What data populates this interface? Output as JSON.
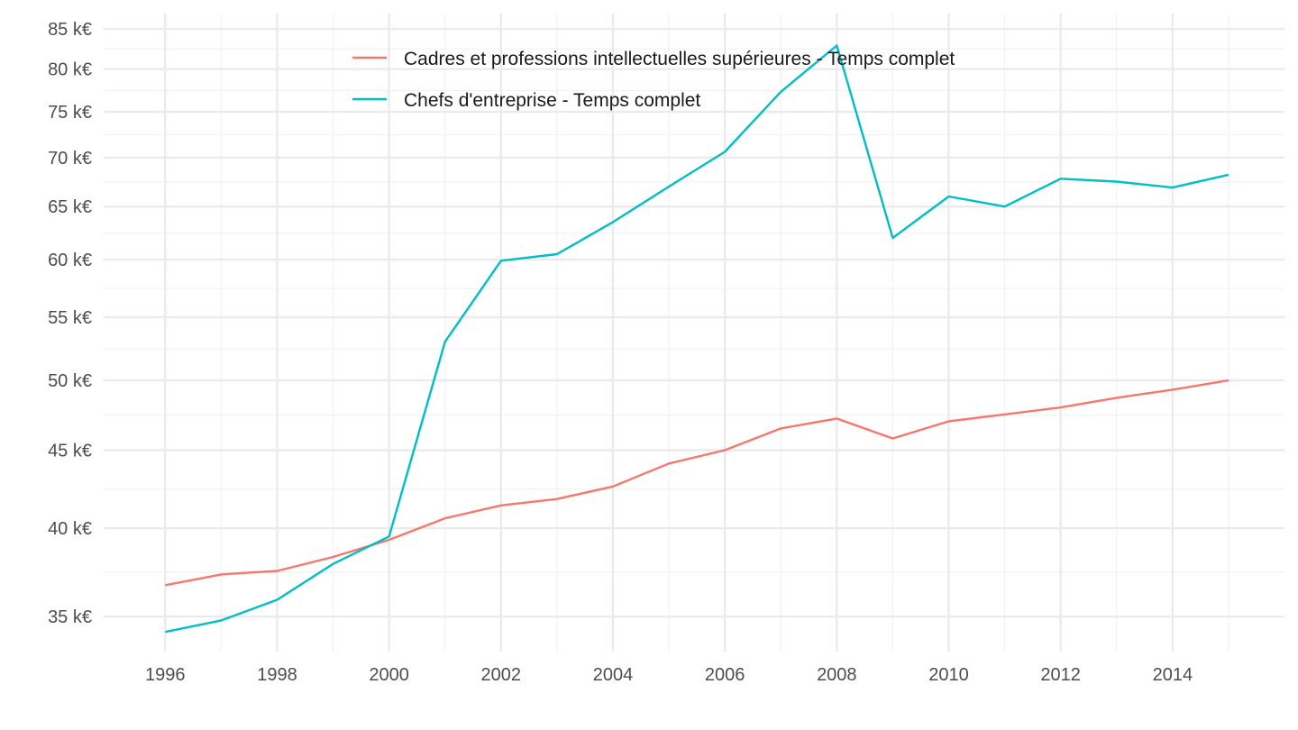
{
  "chart_data": {
    "type": "line",
    "title": "",
    "xlabel": "",
    "ylabel": "",
    "y_scale": "log",
    "x": [
      1996,
      1997,
      1998,
      1999,
      2000,
      2001,
      2002,
      2003,
      2004,
      2005,
      2006,
      2007,
      2008,
      2009,
      2010,
      2011,
      2012,
      2013,
      2014,
      2015
    ],
    "x_ticks": [
      1996,
      1998,
      2000,
      2002,
      2004,
      2006,
      2008,
      2010,
      2012,
      2014
    ],
    "x_tick_labels": [
      "1996",
      "1998",
      "2000",
      "2002",
      "2004",
      "2006",
      "2008",
      "2010",
      "2012",
      "2014"
    ],
    "y_ticks": [
      35000,
      40000,
      45000,
      50000,
      55000,
      60000,
      65000,
      70000,
      75000,
      80000,
      85000
    ],
    "y_tick_labels": [
      "35 k€",
      "40 k€",
      "45 k€",
      "50 k€",
      "55 k€",
      "60 k€",
      "65 k€",
      "70 k€",
      "75 k€",
      "80 k€",
      "85 k€"
    ],
    "ylim": [
      33200,
      87000
    ],
    "xlim": [
      1994.9,
      2016.0
    ],
    "grid": true,
    "legend_position": "top-center",
    "series": [
      {
        "name": "Cadres et professions intellectuelles supérieures - Temps complet",
        "color": "#F8766D",
        "values": [
          36700,
          37300,
          37500,
          38300,
          39300,
          40600,
          41400,
          41800,
          42600,
          44100,
          45000,
          46500,
          47200,
          45800,
          47000,
          47500,
          48000,
          48700,
          49300,
          50000
        ]
      },
      {
        "name": "Chefs d'entreprise - Temps complet",
        "color": "#00BFC4",
        "values": [
          34200,
          34800,
          35900,
          37900,
          39500,
          53000,
          59900,
          60500,
          63500,
          67000,
          70600,
          77300,
          82900,
          62000,
          66000,
          65000,
          67800,
          67500,
          66900,
          68200
        ]
      }
    ]
  }
}
